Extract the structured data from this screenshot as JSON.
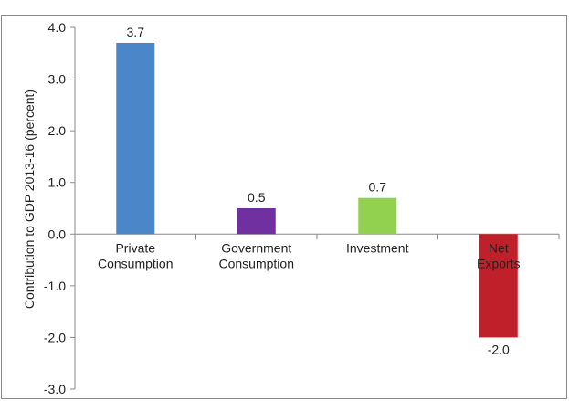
{
  "chart_data": {
    "type": "bar",
    "title": "",
    "ylabel": "Contribution to GDP 2013-16 (percent)",
    "xlabel": "",
    "ylim": [
      -3.0,
      4.0
    ],
    "yticks": [
      "4.0",
      "3.0",
      "2.0",
      "1.0",
      "0.0",
      "-1.0",
      "-2.0",
      "-3.0"
    ],
    "categories": [
      [
        "Private",
        "Consumption"
      ],
      [
        "Government",
        "Consumption"
      ],
      [
        "Investment"
      ],
      [
        "Net",
        "Exports"
      ]
    ],
    "values": [
      3.7,
      0.5,
      0.7,
      -2.0
    ],
    "data_labels": [
      "3.7",
      "0.5",
      "0.7",
      "-2.0"
    ],
    "colors": [
      "#4a86c8",
      "#7030a0",
      "#92d050",
      "#c0202a"
    ],
    "grid": false,
    "legend": "none"
  }
}
